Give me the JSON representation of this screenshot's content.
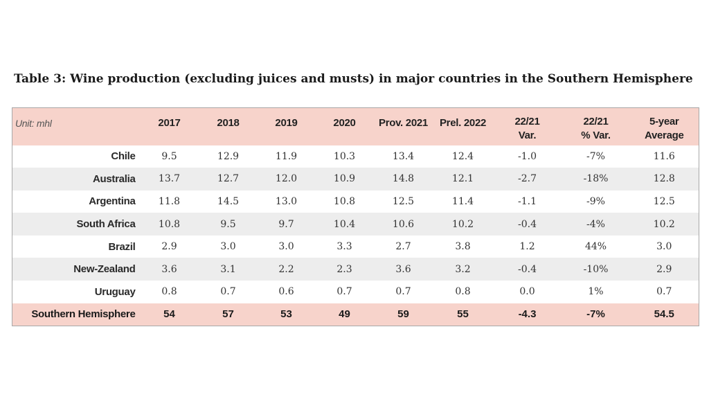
{
  "title": "Table 3: Wine production (excluding juices and musts) in major countries in the Southern Hemisphere",
  "table": {
    "unit_label": "Unit: mhl",
    "headers": [
      {
        "l1": "2017",
        "l2": ""
      },
      {
        "l1": "2018",
        "l2": ""
      },
      {
        "l1": "2019",
        "l2": ""
      },
      {
        "l1": "2020",
        "l2": ""
      },
      {
        "l1": "Prov. 2021",
        "l2": ""
      },
      {
        "l1": "Prel. 2022",
        "l2": ""
      },
      {
        "l1": "22/21",
        "l2": "Var."
      },
      {
        "l1": "22/21",
        "l2": "% Var."
      },
      {
        "l1": "5-year",
        "l2": "Average"
      }
    ],
    "rows": [
      {
        "country": "Chile",
        "values": [
          "9.5",
          "12.9",
          "11.9",
          "10.3",
          "13.4",
          "12.4",
          "-1.0",
          "-7%",
          "11.6"
        ]
      },
      {
        "country": "Australia",
        "values": [
          "13.7",
          "12.7",
          "12.0",
          "10.9",
          "14.8",
          "12.1",
          "-2.7",
          "-18%",
          "12.8"
        ]
      },
      {
        "country": "Argentina",
        "values": [
          "11.8",
          "14.5",
          "13.0",
          "10.8",
          "12.5",
          "11.4",
          "-1.1",
          "-9%",
          "12.5"
        ]
      },
      {
        "country": "South Africa",
        "values": [
          "10.8",
          "9.5",
          "9.7",
          "10.4",
          "10.6",
          "10.2",
          "-0.4",
          "-4%",
          "10.2"
        ]
      },
      {
        "country": "Brazil",
        "values": [
          "2.9",
          "3.0",
          "3.0",
          "3.3",
          "2.7",
          "3.8",
          "1.2",
          "44%",
          "3.0"
        ]
      },
      {
        "country": "New-Zealand",
        "values": [
          "3.6",
          "3.1",
          "2.2",
          "2.3",
          "3.6",
          "3.2",
          "-0.4",
          "-10%",
          "2.9"
        ]
      },
      {
        "country": "Uruguay",
        "values": [
          "0.8",
          "0.7",
          "0.6",
          "0.7",
          "0.7",
          "0.8",
          "0.0",
          "1%",
          "0.7"
        ]
      }
    ],
    "total": {
      "country": "Southern Hemisphere",
      "values": [
        "54",
        "57",
        "53",
        "49",
        "59",
        "55",
        "-4.3",
        "-7%",
        "54.5"
      ]
    }
  },
  "colors": {
    "header_bg": "#f7d3cb",
    "alt_row_bg": "#ededed",
    "border": "#a8a8a8"
  }
}
